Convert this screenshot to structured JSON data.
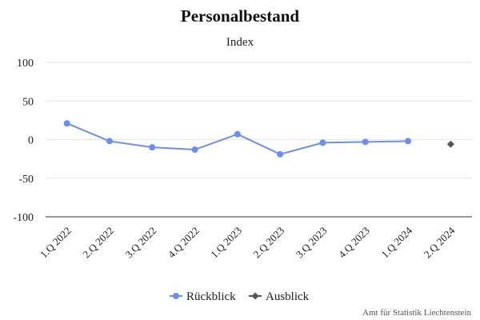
{
  "chart_data": {
    "type": "line",
    "title": "Personalbestand",
    "subtitle": "Index",
    "xlabel": "",
    "ylabel": "",
    "categories": [
      "1.Q 2022",
      "2.Q 2022",
      "3.Q 2022",
      "4.Q 2022",
      "1.Q 2023",
      "2.Q 2023",
      "3.Q 2023",
      "4.Q 2023",
      "1.Q 2024",
      "2.Q 2024"
    ],
    "ylim": [
      -100,
      100
    ],
    "yticks": [
      100,
      50,
      0,
      -50,
      -100
    ],
    "grid": true,
    "legend_position": "bottom",
    "series": [
      {
        "name": "Rückblick",
        "color": "#6b8ff0",
        "marker": "circle",
        "values": [
          21,
          -2,
          -10,
          -13,
          7,
          -19,
          -4,
          -3,
          -2,
          null
        ]
      },
      {
        "name": "Ausblick",
        "color": "#555555",
        "marker": "diamond",
        "values": [
          null,
          null,
          null,
          null,
          null,
          null,
          null,
          null,
          null,
          -6
        ]
      }
    ],
    "credit": "Amt für Statistik Liechtenstein"
  }
}
